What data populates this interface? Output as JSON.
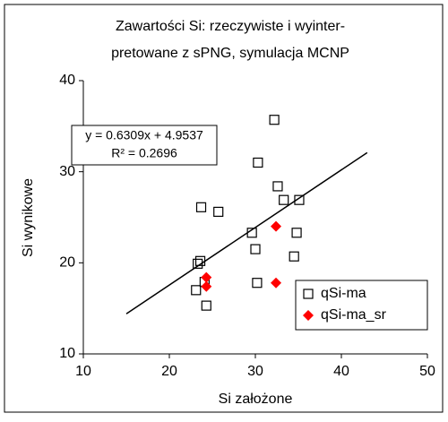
{
  "chart_data": {
    "type": "scatter",
    "title_lines": [
      "Zawartości Si: rzeczywiste i wyinter-",
      "pretowane z sPNG, symulacja MCNP"
    ],
    "xlabel": "Si założone",
    "ylabel": "Si wynikowe",
    "xlim": [
      10,
      50
    ],
    "xticks": [
      10,
      20,
      30,
      40,
      50
    ],
    "ylim": [
      10,
      40
    ],
    "yticks": [
      10,
      20,
      30,
      40
    ],
    "series": [
      {
        "name": "qSi-ma",
        "color": "#000000",
        "marker": "square",
        "x": [
          30.3,
          32.2,
          32.6,
          33.3,
          35.1,
          34.8,
          34.5,
          29.6,
          30.0,
          30.2,
          23.7,
          25.7,
          23.6,
          23.3,
          23.1,
          24.1,
          24.3
        ],
        "values": [
          31.0,
          35.7,
          28.4,
          26.9,
          26.9,
          23.3,
          20.7,
          23.3,
          21.5,
          17.8,
          26.1,
          25.6,
          20.2,
          19.9,
          17.0,
          17.9,
          15.3
        ]
      },
      {
        "name": "qSi-ma_sr",
        "color": "#ff0000",
        "marker": "diamond",
        "x": [
          24.3,
          24.3,
          32.4,
          32.4
        ],
        "values": [
          18.4,
          17.4,
          24.0,
          17.8
        ]
      }
    ],
    "trendline": {
      "x": [
        15,
        43
      ],
      "values": [
        14.4,
        32.1
      ],
      "color": "#000000"
    },
    "equation_lines": [
      "y = 0.6309x + 4.9537",
      "R² = 0.2696"
    ],
    "legend": "lower right"
  }
}
